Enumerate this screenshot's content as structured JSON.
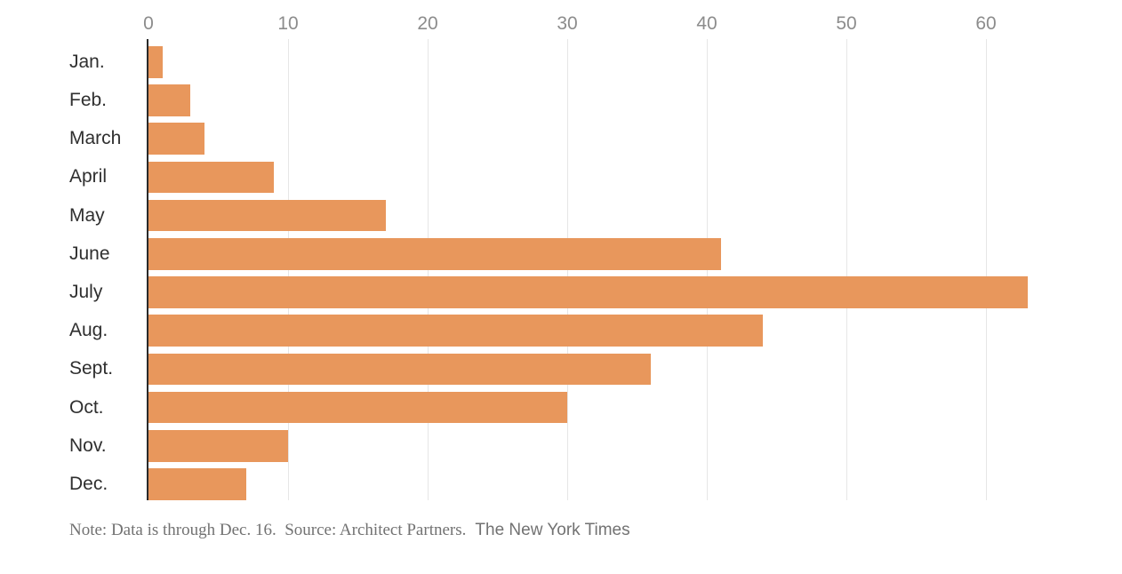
{
  "chart_data": {
    "type": "bar",
    "orientation": "horizontal",
    "title": "",
    "xlabel": "",
    "ylabel": "",
    "categories": [
      "Jan.",
      "Feb.",
      "March",
      "April",
      "May",
      "June",
      "July",
      "Aug.",
      "Sept.",
      "Oct.",
      "Nov.",
      "Dec."
    ],
    "values": [
      1,
      3,
      4,
      9,
      17,
      41,
      63,
      44,
      36,
      30,
      10,
      7
    ],
    "x_ticks": [
      0,
      10,
      20,
      30,
      40,
      50,
      60
    ],
    "xlim": [
      0,
      64
    ],
    "grid": true,
    "legend": false,
    "axis_position": "top"
  },
  "note": {
    "text": "Note: Data is through Dec. 16.  Source: Architect Partners.",
    "credit": "The New York Times"
  },
  "colors": {
    "bar": "#E8975C",
    "gridline": "#E6E6E6",
    "axis_line": "#2A2A2A",
    "tick_label": "#8C8C8C",
    "category_label": "#2F2F2F",
    "note_text": "#727272"
  }
}
